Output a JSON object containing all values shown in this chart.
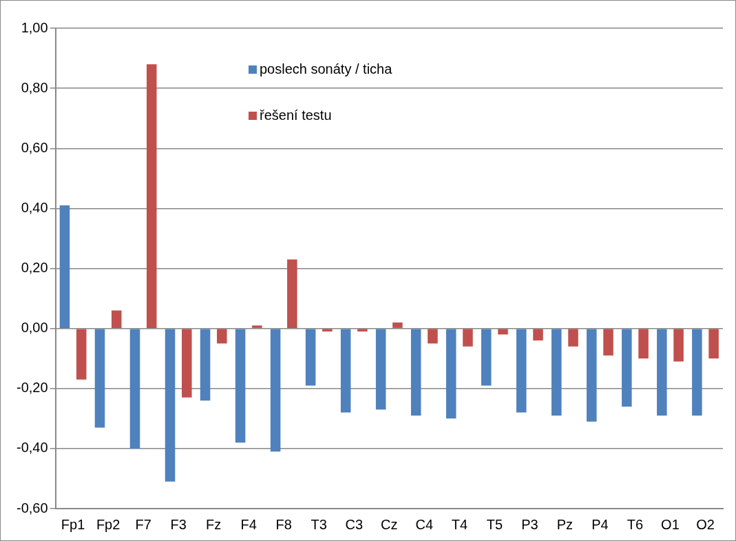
{
  "chart_data": {
    "type": "bar",
    "categories": [
      "Fp1",
      "Fp2",
      "F7",
      "F3",
      "Fz",
      "F4",
      "F8",
      "T3",
      "C3",
      "Cz",
      "C4",
      "T4",
      "T5",
      "P3",
      "Pz",
      "P4",
      "T6",
      "O1",
      "O2"
    ],
    "series": [
      {
        "name": "poslech sonáty / ticha",
        "color": "#4f81bd",
        "values": [
          0.41,
          -0.33,
          -0.4,
          -0.51,
          -0.24,
          -0.38,
          -0.41,
          -0.19,
          -0.28,
          -0.27,
          -0.29,
          -0.3,
          -0.19,
          -0.28,
          -0.29,
          -0.31,
          -0.26,
          -0.29,
          -0.29
        ]
      },
      {
        "name": "řešení testu",
        "color": "#c0504d",
        "values": [
          -0.17,
          0.06,
          0.88,
          -0.23,
          -0.05,
          0.01,
          0.23,
          -0.01,
          -0.01,
          0.02,
          -0.05,
          -0.06,
          -0.02,
          -0.04,
          -0.06,
          -0.09,
          -0.1,
          -0.11,
          -0.1
        ]
      }
    ],
    "ylim": [
      -0.6,
      1.0
    ],
    "yticks": [
      {
        "value": -0.6,
        "label": "-0,60"
      },
      {
        "value": -0.4,
        "label": "-0,40"
      },
      {
        "value": -0.2,
        "label": "-0,20"
      },
      {
        "value": 0,
        "label": "0,00"
      },
      {
        "value": 0.2,
        "label": "0,20"
      },
      {
        "value": 0.4,
        "label": "0,40"
      },
      {
        "value": 0.6,
        "label": "0,60"
      },
      {
        "value": 0.8,
        "label": "0,80"
      },
      {
        "value": 1.0,
        "label": "1,00"
      }
    ],
    "grid": "y",
    "legend": "top"
  }
}
